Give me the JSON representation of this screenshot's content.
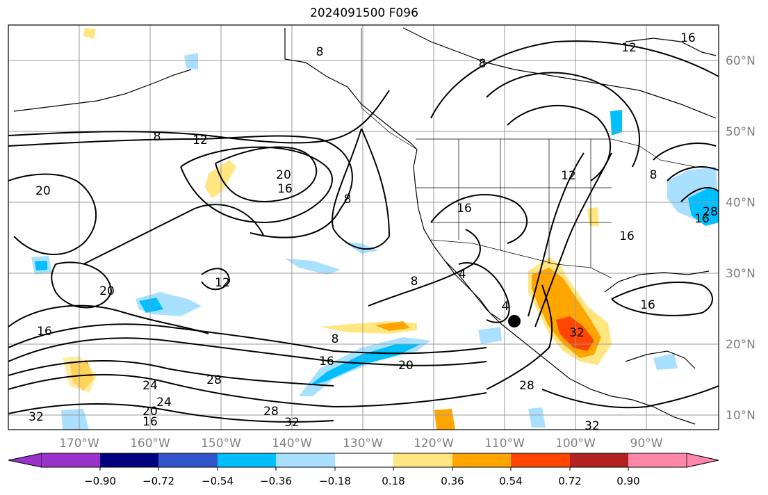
{
  "title": "2024091500 F096",
  "lat_labels": [
    "60°N",
    "50°N",
    "40°N",
    "30°N",
    "20°N",
    "10°N"
  ],
  "lon_labels": [
    "170°W",
    "160°W",
    "150°W",
    "140°W",
    "130°W",
    "120°W",
    "110°W",
    "100°W",
    "90°W"
  ],
  "contour_labels": [
    "8",
    "12",
    "20",
    "16",
    "20",
    "8",
    "16",
    "12",
    "12",
    "16",
    "16",
    "8",
    "8",
    "4",
    "4",
    "16",
    "20",
    "16",
    "20",
    "16",
    "24",
    "28",
    "24",
    "20",
    "16",
    "28",
    "32",
    "28",
    "32",
    "32",
    "32",
    "8",
    "8",
    "8",
    "12",
    "16",
    "28"
  ],
  "colorbar": {
    "colors": [
      "#9933cc",
      "#000080",
      "#3355cc",
      "#00bfff",
      "#aae0ff",
      "#ffffff",
      "#ffe680",
      "#ffa500",
      "#ff4500",
      "#b22222",
      "#ff88aa"
    ],
    "tick_labels": [
      "−0.90",
      "−0.72",
      "−0.54",
      "−0.36",
      "−0.18",
      "0.18",
      "0.36",
      "0.54",
      "0.72",
      "0.90"
    ]
  },
  "marker": "tropical-cyclone-center"
}
